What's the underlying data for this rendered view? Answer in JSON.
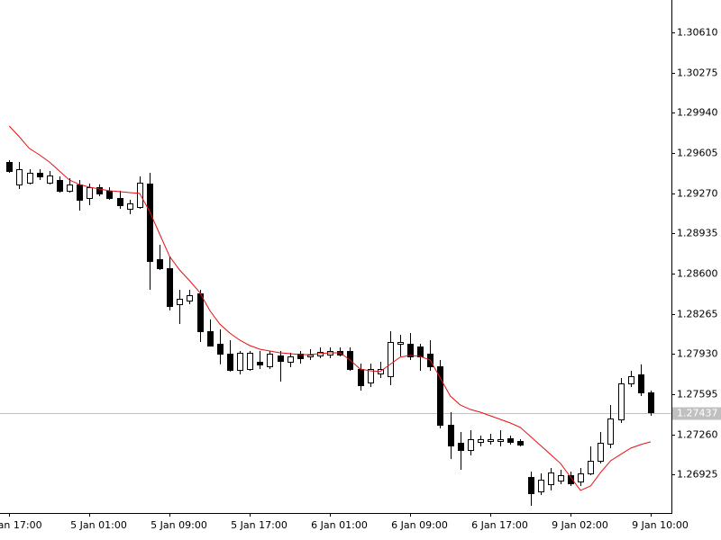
{
  "chart_data": {
    "type": "candlestick",
    "categories": [
      "Jan 17:00",
      null,
      null,
      null,
      null,
      null,
      null,
      null,
      "5 Jan 01:00",
      null,
      null,
      null,
      null,
      null,
      null,
      null,
      "5 Jan 09:00",
      null,
      null,
      null,
      null,
      null,
      null,
      null,
      "5 Jan 17:00",
      null,
      null,
      null,
      null,
      null,
      null,
      null,
      "6 Jan 01:00",
      null,
      null,
      null,
      null,
      null,
      null,
      null,
      "6 Jan 09:00",
      null,
      null,
      null,
      null,
      null,
      null,
      null,
      "6 Jan 17:00",
      null,
      null,
      null,
      null,
      null,
      null,
      null,
      "9 Jan 02:00",
      null,
      null,
      null,
      null,
      null,
      null,
      null,
      "9 Jan 10:00"
    ],
    "open": [
      1.2953,
      1.29343,
      1.29358,
      1.2944,
      1.29358,
      1.2938,
      1.2929,
      1.29343,
      1.2923,
      1.2932,
      1.2929,
      1.2923,
      1.2914,
      1.29155,
      1.2935,
      1.2872,
      1.28645,
      1.28345,
      1.28375,
      1.28435,
      1.2812,
      1.28015,
      1.27933,
      1.27798,
      1.27805,
      1.27865,
      1.27828,
      1.27918,
      1.27865,
      1.27933,
      1.2791,
      1.27918,
      1.27925,
      1.27955,
      1.27955,
      1.27805,
      1.27693,
      1.27768,
      1.27745,
      1.28015,
      1.28015,
      1.27993,
      1.27933,
      1.27828,
      1.2734,
      1.2719,
      1.2713,
      1.27198,
      1.27205,
      1.27205,
      1.27228,
      1.27205,
      1.26905,
      1.26785,
      1.26845,
      1.26875,
      1.2692,
      1.26868,
      1.26935,
      1.2704,
      1.27183,
      1.27385,
      1.27685,
      1.2776,
      1.2761
    ],
    "high": [
      1.29545,
      1.2953,
      1.2947,
      1.2947,
      1.29455,
      1.2941,
      1.29395,
      1.2938,
      1.2935,
      1.29343,
      1.2932,
      1.2929,
      1.29215,
      1.2941,
      1.2944,
      1.2884,
      1.28743,
      1.28465,
      1.28465,
      1.28465,
      1.28218,
      1.28135,
      1.28045,
      1.27955,
      1.27955,
      1.27955,
      1.27955,
      1.27955,
      1.2794,
      1.27955,
      1.2797,
      1.27985,
      1.27985,
      1.27985,
      1.27985,
      1.2785,
      1.2785,
      1.27865,
      1.2812,
      1.2809,
      1.28105,
      1.28015,
      1.28045,
      1.2788,
      1.27445,
      1.2728,
      1.27295,
      1.2725,
      1.27265,
      1.27295,
      1.2725,
      1.2722,
      1.2695,
      1.26935,
      1.2698,
      1.26965,
      1.2695,
      1.2698,
      1.2716,
      1.2728,
      1.27505,
      1.2773,
      1.2779,
      1.27843,
      1.27625
    ],
    "low": [
      1.2944,
      1.29305,
      1.29343,
      1.2938,
      1.29343,
      1.29275,
      1.29275,
      1.29125,
      1.2917,
      1.29245,
      1.29215,
      1.2914,
      1.29095,
      1.2914,
      1.28465,
      1.2863,
      1.28293,
      1.2818,
      1.28345,
      1.2803,
      1.27993,
      1.27843,
      1.27783,
      1.2776,
      1.2779,
      1.27805,
      1.27805,
      1.277,
      1.2782,
      1.2785,
      1.2788,
      1.27895,
      1.27895,
      1.2791,
      1.2779,
      1.27625,
      1.27655,
      1.2773,
      1.2767,
      1.2791,
      1.2788,
      1.2779,
      1.2779,
      1.2731,
      1.27055,
      1.26965,
      1.27085,
      1.2716,
      1.27175,
      1.2716,
      1.27175,
      1.2716,
      1.26665,
      1.26755,
      1.26793,
      1.26845,
      1.2683,
      1.2683,
      1.2692,
      1.27018,
      1.27145,
      1.27355,
      1.27655,
      1.2758,
      1.27415
    ],
    "close": [
      1.29455,
      1.2947,
      1.2944,
      1.2941,
      1.29418,
      1.2929,
      1.29343,
      1.29215,
      1.2932,
      1.29268,
      1.2923,
      1.2917,
      1.29185,
      1.29358,
      1.28705,
      1.28645,
      1.2833,
      1.2839,
      1.2842,
      1.2812,
      1.28,
      1.27933,
      1.27798,
      1.2794,
      1.2794,
      1.27843,
      1.27933,
      1.27873,
      1.2791,
      1.27895,
      1.27925,
      1.27948,
      1.27955,
      1.27925,
      1.27805,
      1.2767,
      1.27805,
      1.27805,
      1.2803,
      1.2803,
      1.2791,
      1.2791,
      1.27828,
      1.2734,
      1.27168,
      1.2713,
      1.2722,
      1.2722,
      1.2722,
      1.2722,
      1.27198,
      1.27175,
      1.2677,
      1.26883,
      1.26943,
      1.2692,
      1.26853,
      1.26935,
      1.2704,
      1.2719,
      1.27393,
      1.27685,
      1.27745,
      1.2761,
      1.27445
    ],
    "up_color": "#ffffff",
    "down_color": "#000000",
    "moving_average": {
      "color": "#e81010",
      "values": [
        1.2983,
        1.2974,
        1.29643,
        1.2959,
        1.2953,
        1.29455,
        1.2938,
        1.29343,
        1.2932,
        1.29305,
        1.2929,
        1.29283,
        1.29275,
        1.29268,
        1.29118,
        1.2893,
        1.28743,
        1.2863,
        1.2854,
        1.28443,
        1.28293,
        1.2818,
        1.28105,
        1.28045,
        1.28,
        1.2797,
        1.27955,
        1.2794,
        1.27933,
        1.27925,
        1.27925,
        1.27933,
        1.2794,
        1.2794,
        1.2788,
        1.27805,
        1.2779,
        1.27783,
        1.27843,
        1.27903,
        1.27918,
        1.2791,
        1.2788,
        1.2773,
        1.2758,
        1.27505,
        1.27468,
        1.27445,
        1.27415,
        1.27385,
        1.27355,
        1.27318,
        1.27243,
        1.27168,
        1.27093,
        1.27018,
        1.26905,
        1.26793,
        1.2683,
        1.26943,
        1.2704,
        1.27093,
        1.27145,
        1.27175,
        1.27198
      ]
    },
    "current_price": 1.27437,
    "current_price_color": "#c0c0c0",
    "ylim": [
      1.26605,
      1.3088
    ],
    "yticks": [
      {
        "value": 1.3061,
        "label": "1.30610"
      },
      1.30275,
      {
        "value": 1.2994,
        "label": "1.29940"
      },
      1.29605,
      {
        "value": 1.2927,
        "label": "1.29270"
      },
      1.28935,
      {
        "value": 1.286,
        "label": "1.28600"
      },
      1.28265,
      {
        "value": 1.2793,
        "label": "1.27930"
      },
      1.27595,
      {
        "value": 1.2726,
        "label": "1.27260"
      },
      1.26925
    ]
  }
}
